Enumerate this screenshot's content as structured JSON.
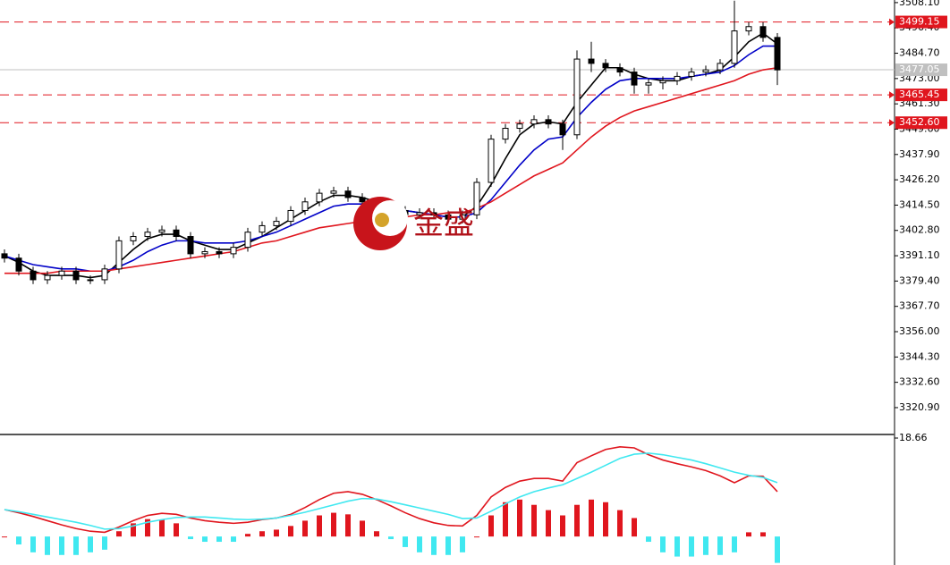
{
  "chart_data": [
    {
      "type": "candlestick",
      "watermark": "金盛",
      "ylim": [
        3308.9,
        3509.3
      ],
      "yticks": [
        {
          "value": 3508.1,
          "label": "3508.10"
        },
        {
          "value": 3496.4,
          "label": "3496.40"
        },
        {
          "value": 3484.7,
          "label": "3484.70"
        },
        {
          "value": 3473,
          "label": "3473.00"
        },
        {
          "value": 3461.3,
          "label": "3461.30"
        },
        {
          "value": 3449.6,
          "label": "3449.60"
        },
        {
          "value": 3437.9,
          "label": "3437.90"
        },
        {
          "value": 3426.2,
          "label": "3426.20"
        },
        {
          "value": 3414.5,
          "label": "3414.50"
        },
        {
          "value": 3402.8,
          "label": "3402.80"
        },
        {
          "value": 3391.1,
          "label": "3391.10"
        },
        {
          "value": 3379.4,
          "label": "3379.40"
        },
        {
          "value": 3367.7,
          "label": "3367.70"
        },
        {
          "value": 3356,
          "label": "3356.00"
        },
        {
          "value": 3344.3,
          "label": "3344.30"
        },
        {
          "value": 3332.6,
          "label": "3332.60"
        },
        {
          "value": 3320.9,
          "label": "3320.90"
        }
      ],
      "levels": [
        3499.15,
        3465.45,
        {
          "value": 3452.6,
          "label": "3452.60"
        }
      ],
      "level_color": "#e0161e",
      "current": 3477.05,
      "open": [
        3392,
        3390,
        3384,
        3380,
        3382,
        3384,
        3380,
        3380,
        3385,
        3398,
        3400,
        3402,
        3403,
        3400,
        3392,
        3393,
        3392,
        3395,
        3402,
        3405,
        3407,
        3412,
        3416,
        3420,
        3421,
        3418,
        3416,
        3414,
        3412,
        3410,
        3411,
        3410,
        3408,
        3410,
        3425,
        3445,
        3450,
        3452,
        3454,
        3452,
        3447,
        3482,
        3480,
        3478,
        3476,
        3470,
        3471,
        3472,
        3474,
        3476,
        3477,
        3480,
        3495,
        3497,
        3492
      ],
      "high": [
        3394,
        3392,
        3386,
        3384,
        3386,
        3386,
        3382,
        3387,
        3400,
        3402,
        3404,
        3405,
        3405,
        3402,
        3395,
        3395,
        3397,
        3404,
        3407,
        3409,
        3414,
        3418,
        3422,
        3423,
        3423,
        3420,
        3418,
        3416,
        3414,
        3413,
        3413,
        3412,
        3412,
        3427,
        3447,
        3452,
        3454,
        3456,
        3456,
        3454,
        3486,
        3490,
        3482,
        3480,
        3478,
        3473,
        3474,
        3476,
        3478,
        3479,
        3482,
        3509,
        3499,
        3499,
        3494
      ],
      "low": [
        3388,
        3382,
        3378,
        3378,
        3380,
        3378,
        3378,
        3378,
        3383,
        3396,
        3398,
        3400,
        3398,
        3390,
        3390,
        3390,
        3390,
        3393,
        3400,
        3403,
        3405,
        3410,
        3414,
        3418,
        3416,
        3414,
        3412,
        3410,
        3408,
        3408,
        3408,
        3406,
        3406,
        3408,
        3423,
        3443,
        3448,
        3450,
        3450,
        3440,
        3445,
        3476,
        3476,
        3474,
        3466,
        3466,
        3468,
        3470,
        3472,
        3474,
        3475,
        3478,
        3493,
        3490,
        3470
      ],
      "close": [
        3390,
        3384,
        3380,
        3382,
        3384,
        3380,
        3380,
        3385,
        3398,
        3400,
        3402,
        3403,
        3400,
        3392,
        3393,
        3392,
        3395,
        3402,
        3405,
        3407,
        3412,
        3416,
        3420,
        3421,
        3418,
        3416,
        3414,
        3412,
        3410,
        3411,
        3410,
        3408,
        3410,
        3425,
        3445,
        3450,
        3452,
        3454,
        3452,
        3447,
        3482,
        3480,
        3478,
        3476,
        3470,
        3471,
        3472,
        3474,
        3476,
        3477,
        3480,
        3495,
        3497,
        3492,
        3477
      ],
      "series": [
        {
          "color": "#000000",
          "values": [
            3391,
            3388,
            3384,
            3382,
            3382,
            3382,
            3381,
            3382,
            3388,
            3394,
            3399,
            3401,
            3401,
            3398,
            3396,
            3394,
            3394,
            3397,
            3400,
            3404,
            3408,
            3412,
            3416,
            3419,
            3419,
            3418,
            3416,
            3414,
            3412,
            3411,
            3410,
            3409,
            3409,
            3414,
            3424,
            3436,
            3447,
            3452,
            3453,
            3452,
            3462,
            3470,
            3478,
            3478,
            3475,
            3473,
            3472,
            3472,
            3474,
            3475,
            3477,
            3483,
            3490,
            3494,
            3489
          ]
        },
        {
          "color": "#0000c8",
          "values": [
            3391,
            3389,
            3387,
            3386,
            3385,
            3385,
            3384,
            3384,
            3386,
            3389,
            3393,
            3396,
            3398,
            3398,
            3397,
            3397,
            3397,
            3398,
            3400,
            3402,
            3405,
            3408,
            3411,
            3414,
            3415,
            3415,
            3414,
            3413,
            3412,
            3411,
            3410,
            3409,
            3409,
            3411,
            3417,
            3425,
            3433,
            3440,
            3445,
            3446,
            3455,
            3462,
            3468,
            3472,
            3473,
            3473,
            3473,
            3473,
            3474,
            3475,
            3476,
            3479,
            3484,
            3488,
            3488
          ]
        },
        {
          "color": "#e0161e",
          "values": [
            3383,
            3383,
            3383,
            3383,
            3384,
            3384,
            3384,
            3384,
            3385,
            3386,
            3387,
            3388,
            3389,
            3390,
            3391,
            3392,
            3393,
            3395,
            3397,
            3398,
            3400,
            3402,
            3404,
            3405,
            3406,
            3407,
            3408,
            3409,
            3409,
            3410,
            3410,
            3411,
            3411,
            3413,
            3416,
            3420,
            3424,
            3428,
            3431,
            3434,
            3440,
            3446,
            3451,
            3455,
            3458,
            3460,
            3462,
            3464,
            3466,
            3468,
            3470,
            3472,
            3475,
            3477,
            3478
          ]
        }
      ]
    },
    {
      "type": "macd",
      "ylim": [
        -5.4,
        18.66
      ],
      "yticks": [
        18.66
      ],
      "positive_color": "#e0161e",
      "negative_color": "#40e8f0",
      "histogram": [
        0,
        -1.5,
        -3,
        -3.5,
        -3.5,
        -3.5,
        -3,
        -2.5,
        1,
        2.5,
        3.3,
        3.2,
        2.5,
        -0.5,
        -1,
        -1,
        -1,
        0.5,
        1,
        1.3,
        2,
        3,
        4,
        4.5,
        4.2,
        3,
        1,
        -0.5,
        -2,
        -3,
        -3.5,
        -3.5,
        -3,
        0,
        4,
        6.5,
        7,
        6,
        5,
        4,
        6,
        7,
        6.5,
        5,
        3.5,
        -1,
        -3,
        -3.8,
        -3.8,
        -3.5,
        -3.5,
        -3,
        0.8,
        0.8,
        -5
      ],
      "series": [
        {
          "color": "#e0161e",
          "values": [
            5.1,
            4.5,
            3.8,
            3,
            2.2,
            1.5,
            1,
            0.8,
            1.8,
            3,
            4,
            4.4,
            4.2,
            3.5,
            3,
            2.7,
            2.5,
            2.7,
            3.2,
            3.5,
            4.2,
            5.5,
            7,
            8.2,
            8.5,
            8,
            7,
            5.8,
            4.5,
            3.4,
            2.6,
            2.1,
            2,
            4,
            7.5,
            9.3,
            10.5,
            11,
            11,
            10.5,
            14,
            15.3,
            16.5,
            17,
            16.8,
            15.5,
            14.5,
            13.8,
            13.2,
            12.5,
            11.5,
            10.2,
            11.5,
            11.4,
            8.5
          ]
        },
        {
          "color": "#40e8f0",
          "values": [
            5.1,
            4.7,
            4.2,
            3.7,
            3.2,
            2.7,
            2.1,
            1.4,
            1.5,
            2,
            2.7,
            3.2,
            3.6,
            3.7,
            3.7,
            3.5,
            3.3,
            3.2,
            3.3,
            3.5,
            4,
            4.6,
            5.3,
            6,
            6.7,
            7.2,
            7.1,
            6.6,
            6,
            5.4,
            4.8,
            4.2,
            3.4,
            3.5,
            4.8,
            6.2,
            7.5,
            8.5,
            9.2,
            9.8,
            11,
            12.2,
            13.5,
            14.8,
            15.6,
            15.8,
            15.5,
            15,
            14.5,
            13.8,
            13,
            12.2,
            11.6,
            11.2,
            10.2
          ]
        }
      ]
    }
  ]
}
